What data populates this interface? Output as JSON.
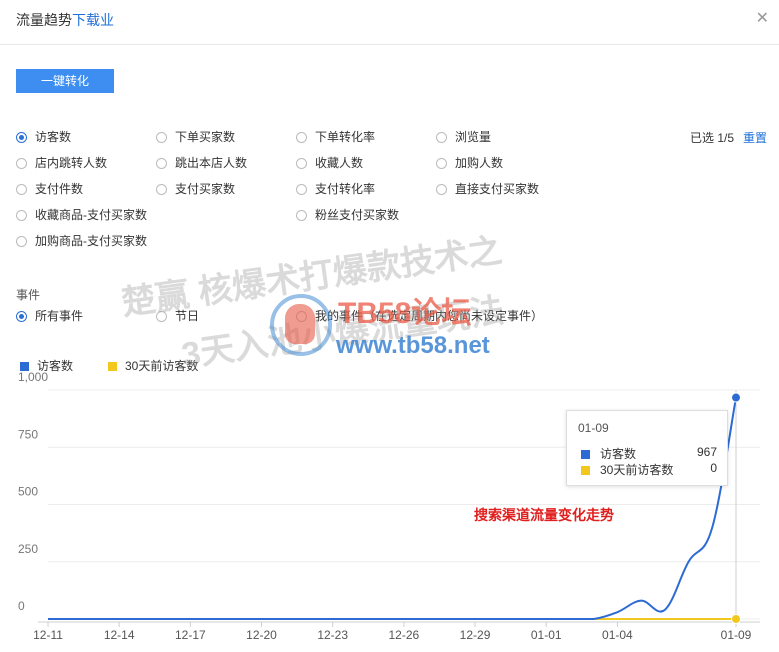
{
  "dialog": {
    "title": "流量趋势",
    "title_link": "下载业",
    "close_icon": "close-icon"
  },
  "toolbar": {
    "convert_label": "一键转化"
  },
  "metrics": {
    "items": [
      {
        "label": "访客数",
        "checked": true
      },
      {
        "label": "下单买家数",
        "checked": false
      },
      {
        "label": "下单转化率",
        "checked": false
      },
      {
        "label": "浏览量",
        "checked": false
      },
      {
        "label": "店内跳转人数",
        "checked": false
      },
      {
        "label": "跳出本店人数",
        "checked": false
      },
      {
        "label": "收藏人数",
        "checked": false
      },
      {
        "label": "加购人数",
        "checked": false
      },
      {
        "label": "支付件数",
        "checked": false
      },
      {
        "label": "支付买家数",
        "checked": false
      },
      {
        "label": "支付转化率",
        "checked": false
      },
      {
        "label": "直接支付买家数",
        "checked": false
      },
      {
        "label": "收藏商品-支付买家数",
        "checked": false
      },
      {
        "label": "粉丝支付买家数",
        "checked": false
      },
      {
        "label": "加购商品-支付买家数",
        "checked": false
      }
    ],
    "selected_count": "已选 1/5",
    "reset_label": "重置"
  },
  "events": {
    "label": "事件",
    "options": [
      {
        "label": "所有事件",
        "checked": true
      },
      {
        "label": "节日",
        "checked": false
      },
      {
        "label": "我的事件（在选定周期内您尚未设定事件）",
        "checked": false
      }
    ]
  },
  "watermark": {
    "line1": "楚赢 核爆术打爆款技术之",
    "line2": "3天入池小爆流量玩法",
    "site_name": "TB58论坛",
    "site_url": "www.tb58.net"
  },
  "tooltip": {
    "date": "01-09",
    "rows": [
      {
        "name": "访客数",
        "value": "967",
        "color": "#2d6bd4"
      },
      {
        "name": "30天前访客数",
        "value": "0",
        "color": "#f2c81e"
      }
    ]
  },
  "annotation": "搜索渠道流量变化走势",
  "chart_data": {
    "type": "line",
    "x": [
      "12-11",
      "12-12",
      "12-13",
      "12-14",
      "12-15",
      "12-16",
      "12-17",
      "12-18",
      "12-19",
      "12-20",
      "12-21",
      "12-22",
      "12-23",
      "12-24",
      "12-25",
      "12-26",
      "12-27",
      "12-28",
      "12-29",
      "12-30",
      "12-31",
      "01-01",
      "01-02",
      "01-03",
      "01-04",
      "01-05",
      "01-06",
      "01-07",
      "01-08",
      "01-09"
    ],
    "x_ticks": [
      "12-11",
      "12-14",
      "12-17",
      "12-20",
      "12-23",
      "12-26",
      "12-29",
      "01-01",
      "01-04",
      "01-09"
    ],
    "series": [
      {
        "name": "访客数",
        "color": "#2d6bd4",
        "values": [
          0,
          0,
          0,
          0,
          0,
          0,
          0,
          0,
          0,
          0,
          0,
          0,
          0,
          0,
          0,
          0,
          0,
          0,
          0,
          0,
          0,
          0,
          0,
          0,
          30,
          80,
          40,
          250,
          400,
          967
        ]
      },
      {
        "name": "30天前访客数",
        "color": "#f2c81e",
        "values": [
          0,
          0,
          0,
          0,
          0,
          0,
          0,
          0,
          0,
          0,
          0,
          0,
          0,
          0,
          0,
          0,
          0,
          0,
          0,
          0,
          0,
          0,
          0,
          0,
          0,
          0,
          0,
          0,
          0,
          0
        ]
      }
    ],
    "y_ticks": [
      0,
      250,
      500,
      750,
      1000
    ],
    "y_tick_labels": [
      "0",
      "250",
      "500",
      "750",
      "1,000"
    ],
    "ylim": [
      0,
      1000
    ],
    "grid": true,
    "legend_position": "top-left"
  }
}
